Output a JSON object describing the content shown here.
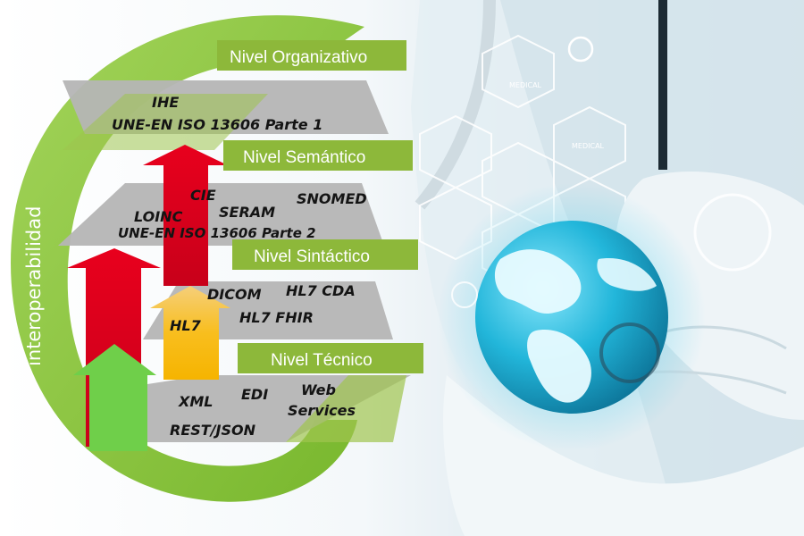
{
  "diagram": {
    "side_label": "interoperabilidad",
    "levels": [
      {
        "label": "Nivel Organizativo",
        "terms": [
          "IHE",
          "UNE-EN ISO 13606 Parte 1"
        ]
      },
      {
        "label": "Nivel Semántico",
        "terms": [
          "CIE",
          "SERAM",
          "SNOMED",
          "LOINC",
          "UNE-EN ISO 13606 Parte 2"
        ]
      },
      {
        "label": "Nivel Sintáctico",
        "terms": [
          "DICOM",
          "HL7 CDA",
          "HL7",
          "HL7 FHIR"
        ]
      },
      {
        "label": "Nivel Técnico",
        "terms": [
          "XML",
          "EDI",
          "Web",
          "Services",
          "REST/JSON"
        ]
      }
    ]
  },
  "background_labels": [
    "MEDICAL",
    "MEDICAL"
  ],
  "colors": {
    "ring_green": "#8cc63f",
    "level_box_green": "#8db83a",
    "band_gray": "#b5b5b5",
    "arrow_red": "#e3001b",
    "arrow_orange": "#f7b500",
    "arrow_light_green": "#6fcf4a",
    "globe_cyan": "#1fb8d8"
  }
}
